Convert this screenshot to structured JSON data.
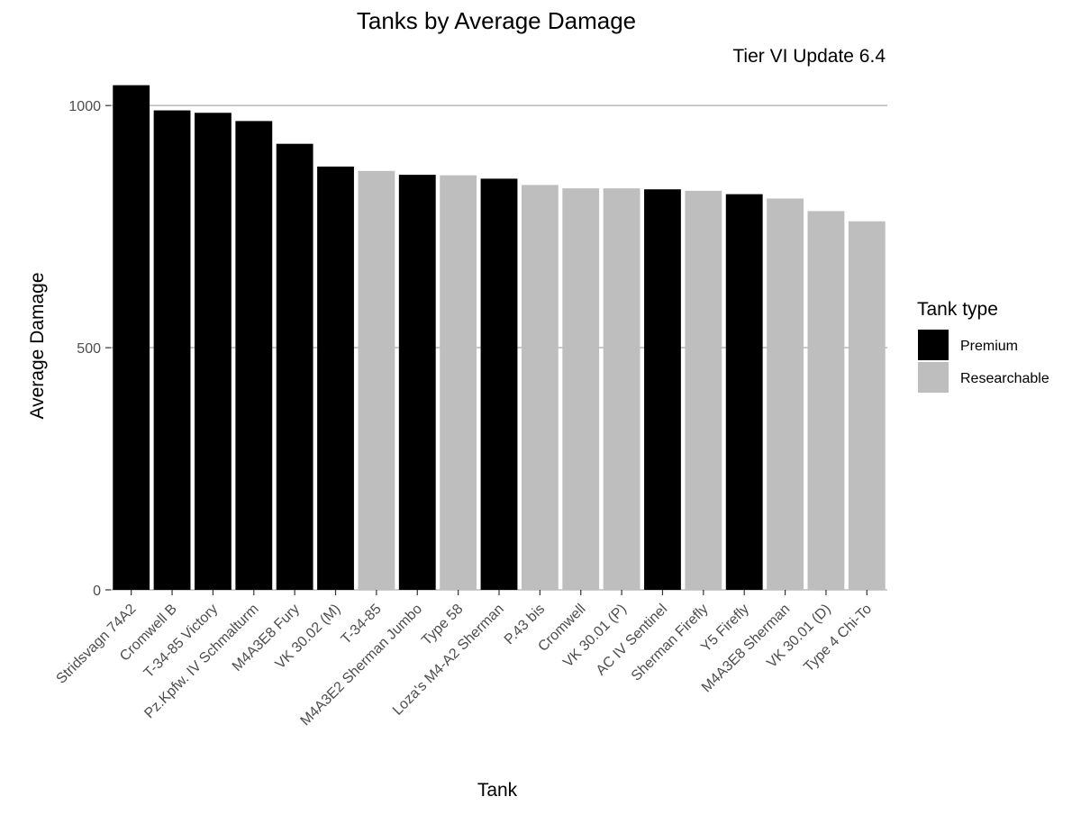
{
  "chart_data": {
    "type": "bar",
    "title": "Tanks by Average Damage",
    "subtitle": "Tier VI Update 6.4",
    "xlabel": "Tank",
    "ylabel": "Average Damage",
    "ylim": [
      0,
      1045
    ],
    "yticks": [
      0,
      500,
      1000
    ],
    "grid": "horizontal major",
    "categories": [
      "Stridsvagn 74A2",
      "Cromwell B",
      "T-34-85 Victory",
      "Pz.Kpfw. IV Schmalturm",
      "M4A3E8 Fury",
      "VK 30.02 (M)",
      "T-34-85",
      "M4A3E2 Sherman Jumbo",
      "Type 58",
      "Loza's M4-A2 Sherman",
      "P.43 bis",
      "Cromwell",
      "VK 30.01 (P)",
      "AC IV Sentinel",
      "Sherman Firefly",
      "Y5 Firefly",
      "M4A3E8 Sherman",
      "VK 30.01 (D)",
      "Type 4 Chi-To"
    ],
    "values": [
      1042,
      990,
      985,
      968,
      921,
      874,
      865,
      857,
      856,
      849,
      836,
      829,
      829,
      827,
      824,
      817,
      808,
      782,
      761
    ],
    "groups": [
      "Premium",
      "Premium",
      "Premium",
      "Premium",
      "Premium",
      "Premium",
      "Researchable",
      "Premium",
      "Researchable",
      "Premium",
      "Researchable",
      "Researchable",
      "Researchable",
      "Premium",
      "Researchable",
      "Premium",
      "Researchable",
      "Researchable",
      "Researchable"
    ],
    "legend": {
      "title": "Tank type",
      "position": "right",
      "entries": [
        {
          "label": "Premium",
          "color": "#000000"
        },
        {
          "label": "Researchable",
          "color": "#bebebe"
        }
      ]
    },
    "colors": {
      "grid": "#bebebe",
      "axis_text": "#4d4d4d",
      "text": "#000000"
    }
  }
}
